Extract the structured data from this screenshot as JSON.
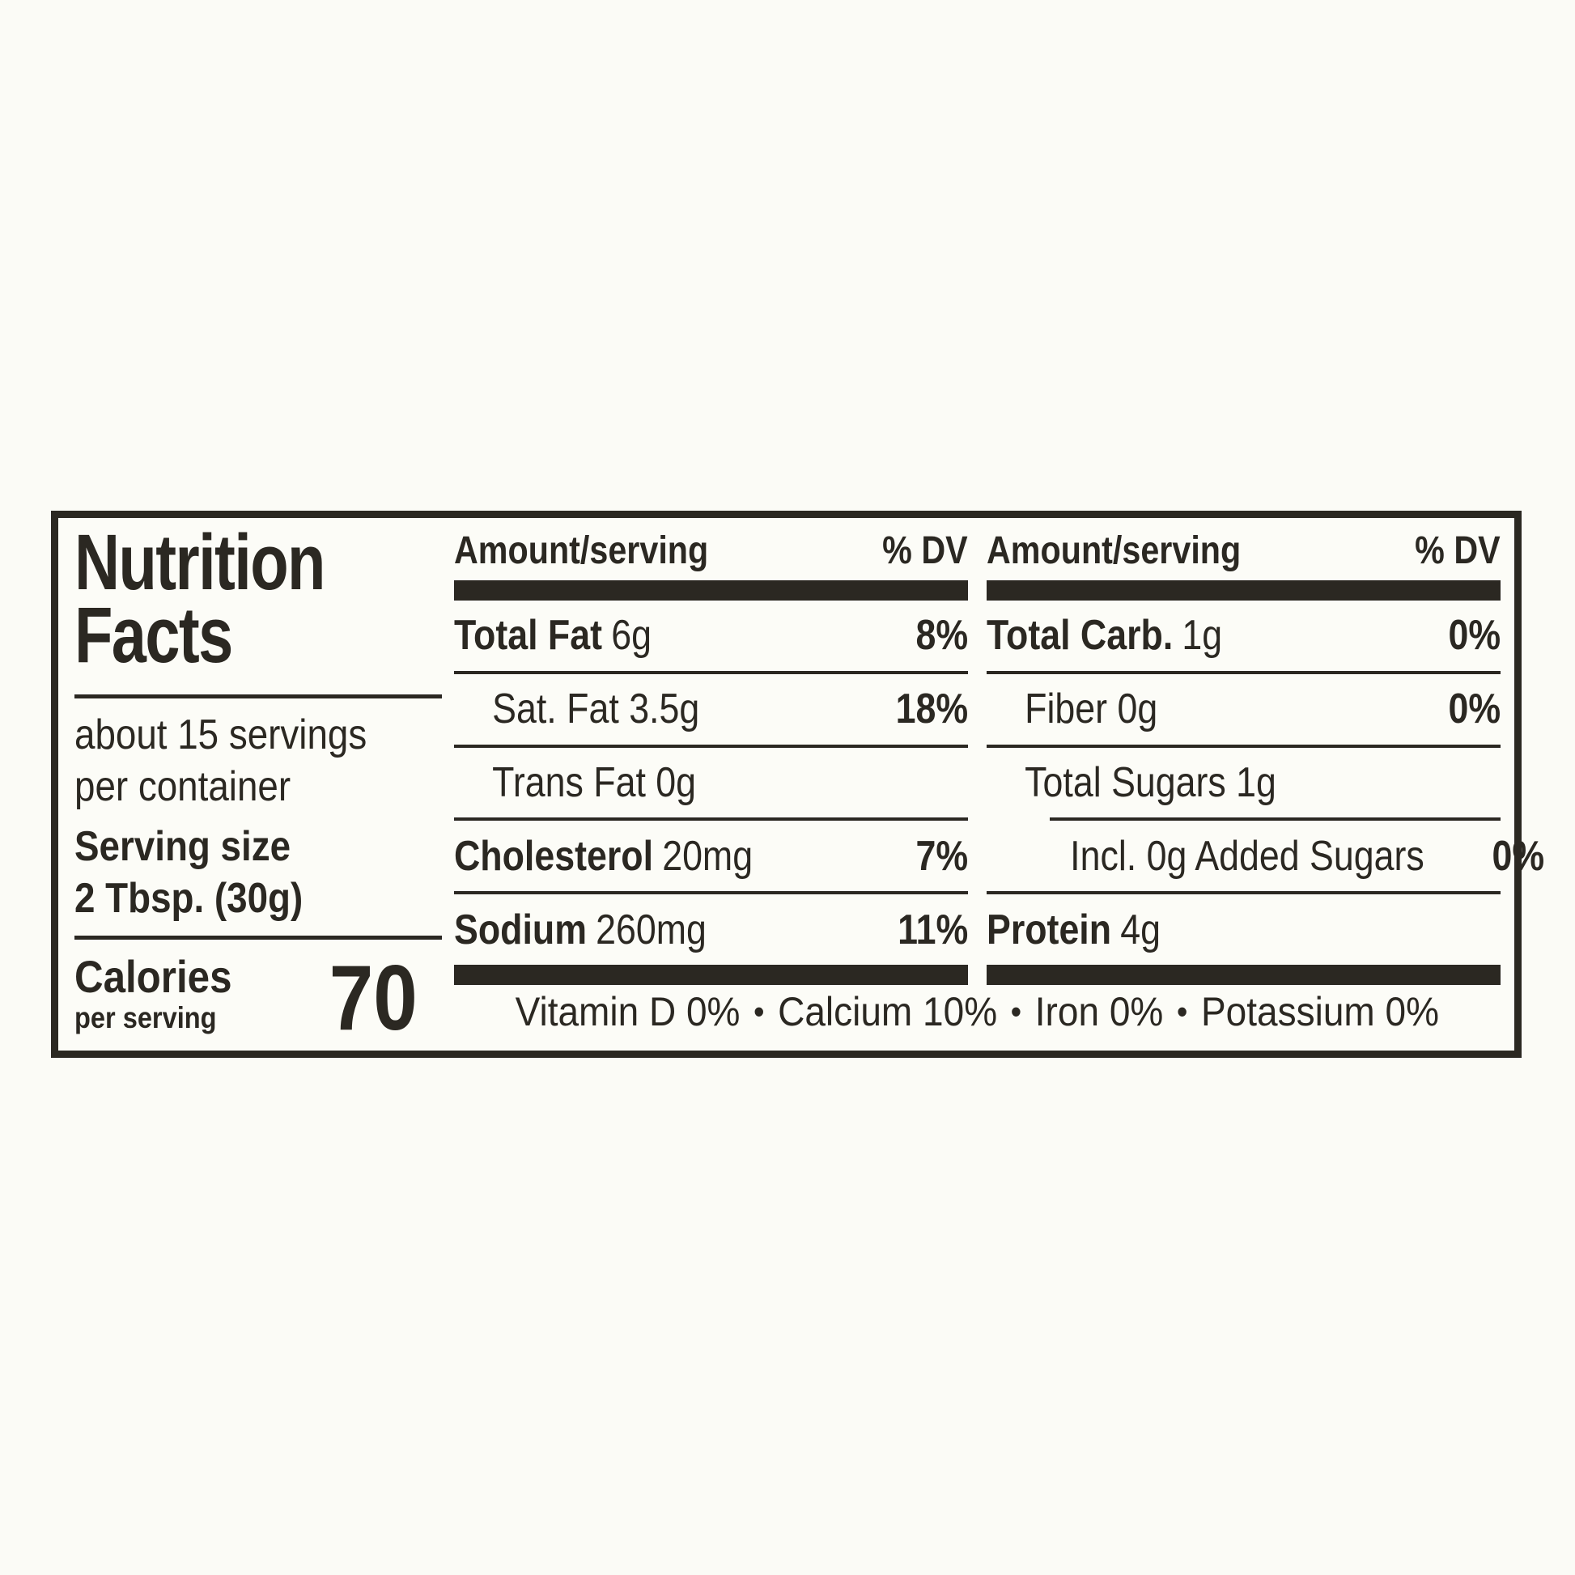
{
  "colors": {
    "ink": "#2b2822",
    "background": "#fbfbf6"
  },
  "label": {
    "left": {
      "title_line1": "Nutrition",
      "title_line2": "Facts",
      "servings_line1": "about 15 servings",
      "servings_line2": "per container",
      "serving_size_label": "Serving size",
      "serving_size_value": "2 Tbsp. (30g)",
      "calories_label": "Calories",
      "calories_sublabel": "per serving",
      "calories_value": "70"
    },
    "columns": [
      {
        "header_amount": "Amount/serving",
        "header_dv": "% DV",
        "rows": [
          {
            "name": "Total Fat",
            "amount": "6g",
            "dv": "8%"
          },
          {
            "name": "",
            "amount": "Sat. Fat 3.5g",
            "dv": "18%"
          },
          {
            "name": "",
            "amount": "Trans Fat 0g",
            "dv": ""
          },
          {
            "name": "Cholesterol",
            "amount": "20mg",
            "dv": "7%"
          },
          {
            "name": "Sodium",
            "amount": "260mg",
            "dv": "11%"
          }
        ]
      },
      {
        "header_amount": "Amount/serving",
        "header_dv": "% DV",
        "rows": [
          {
            "name": "Total Carb.",
            "amount": "1g",
            "dv": "0%"
          },
          {
            "name": "",
            "amount": "Fiber 0g",
            "dv": "0%"
          },
          {
            "name": "",
            "amount": "Total Sugars 1g",
            "dv": ""
          },
          {
            "name": "",
            "amount": "Incl. 0g Added Sugars",
            "dv": "0%"
          },
          {
            "name": "Protein",
            "amount": "4g",
            "dv": ""
          }
        ]
      }
    ],
    "footer": {
      "separator": "•",
      "items": [
        "Vitamin D 0%",
        "Calcium 10%",
        "Iron 0%",
        "Potassium 0%"
      ]
    }
  }
}
